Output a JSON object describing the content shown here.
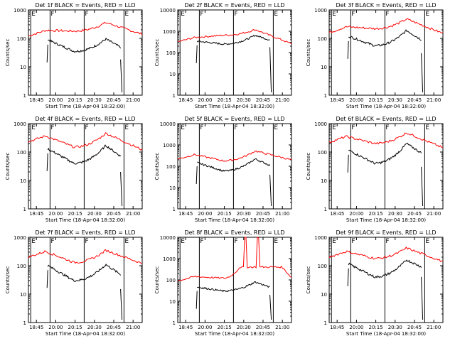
{
  "chart_data": [
    {
      "type": "line",
      "title": "Det 1f BLACK = Events, RED = LLD",
      "ylabel": "Counts/sec",
      "xlabel": "Start Time (18-Apr-04 18:32:00)",
      "yscale": "log",
      "ylim": [
        1,
        1000
      ],
      "ytick_labels": [
        "1",
        "10",
        "100",
        "1000"
      ],
      "xtick_labels": [
        "18:45",
        "20:00",
        "20:15",
        "20:30",
        "20:45",
        "21:00"
      ],
      "marker_labels": [
        "E",
        "F",
        "F",
        "E"
      ],
      "series": [
        {
          "color": "#ff0000",
          "start": 120,
          "peak": 360,
          "valley": 180,
          "end": 140
        },
        {
          "color": "#000000",
          "start": 60,
          "peak": 95,
          "valley": 35,
          "end": 18
        }
      ]
    },
    {
      "type": "line",
      "title": "Det 2f BLACK = Events, RED = LLD",
      "ylabel": "Counts/sec",
      "xlabel": "Start Time (18-Apr-04 18:32:00)",
      "yscale": "log",
      "ylim": [
        1,
        10000
      ],
      "ytick_labels": [
        "1",
        "10",
        "100",
        "1000",
        "10000"
      ],
      "xtick_labels": [
        "18:45",
        "20:00",
        "20:15",
        "20:30",
        "20:45",
        "21:00"
      ],
      "marker_labels": [
        "E",
        "F",
        "F",
        "E"
      ],
      "series": [
        {
          "color": "#ff0000",
          "start": 320,
          "peak": 1200,
          "valley": 650,
          "end": 260
        },
        {
          "color": "#000000",
          "start": 220,
          "peak": 650,
          "valley": 250,
          "end": 180
        }
      ]
    },
    {
      "type": "line",
      "title": "Det 3f BLACK = Events, RED = LLD",
      "ylabel": "Counts/sec",
      "xlabel": "Start Time (18-Apr-04 18:32:00)",
      "yscale": "log",
      "ylim": [
        1,
        1000
      ],
      "ytick_labels": [
        "1",
        "10",
        "100",
        "1000"
      ],
      "xtick_labels": [
        "18:45",
        "20:00",
        "20:15",
        "20:30",
        "20:45",
        "21:00"
      ],
      "marker_labels": [
        "E",
        "F",
        "F",
        "E"
      ],
      "series": [
        {
          "color": "#ff0000",
          "start": 160,
          "peak": 480,
          "valley": 220,
          "end": 150
        },
        {
          "color": "#000000",
          "start": 80,
          "peak": 190,
          "valley": 55,
          "end": 30
        }
      ]
    },
    {
      "type": "line",
      "title": "Det 4f BLACK = Events, RED = LLD",
      "ylabel": "Counts/sec",
      "xlabel": "Start Time (18-Apr-04 18:32:00)",
      "yscale": "log",
      "ylim": [
        1,
        1000
      ],
      "ytick_labels": [
        "1",
        "10",
        "100",
        "1000"
      ],
      "xtick_labels": [
        "18:45",
        "20:00",
        "20:15",
        "20:30",
        "20:45",
        "21:00"
      ],
      "marker_labels": [
        "E",
        "F",
        "F",
        "E"
      ],
      "series": [
        {
          "color": "#ff0000",
          "start": 230,
          "peak": 460,
          "valley": 150,
          "end": 120
        },
        {
          "color": "#000000",
          "start": 90,
          "peak": 170,
          "valley": 40,
          "end": 20
        }
      ]
    },
    {
      "type": "line",
      "title": "Det 5f BLACK = Events, RED = LLD",
      "ylabel": "Counts/sec",
      "xlabel": "Start Time (18-Apr-04 18:32:00)",
      "yscale": "log",
      "ylim": [
        1,
        10000
      ],
      "ytick_labels": [
        "1",
        "10",
        "100",
        "1000",
        "10000"
      ],
      "xtick_labels": [
        "18:45",
        "20:00",
        "20:15",
        "20:30",
        "20:45",
        "21:00"
      ],
      "marker_labels": [
        "E",
        "F",
        "F",
        "E"
      ],
      "series": [
        {
          "color": "#ff0000",
          "start": 220,
          "peak": 520,
          "valley": 180,
          "end": 200
        },
        {
          "color": "#000000",
          "start": 100,
          "peak": 220,
          "valley": 60,
          "end": 40
        }
      ]
    },
    {
      "type": "line",
      "title": "Det 6f BLACK = Events, RED = LLD",
      "ylabel": "Counts/sec",
      "xlabel": "Start Time (18-Apr-04 18:32:00)",
      "yscale": "log",
      "ylim": [
        1,
        1000
      ],
      "ytick_labels": [
        "1",
        "10",
        "100",
        "1000"
      ],
      "xtick_labels": [
        "18:45",
        "20:00",
        "20:15",
        "20:30",
        "20:45",
        "21:00"
      ],
      "marker_labels": [
        "E",
        "F",
        "F",
        "E"
      ],
      "series": [
        {
          "color": "#ff0000",
          "start": 220,
          "peak": 480,
          "valley": 200,
          "end": 140
        },
        {
          "color": "#000000",
          "start": 80,
          "peak": 200,
          "valley": 40,
          "end": 30
        }
      ]
    },
    {
      "type": "line",
      "title": "Det 7f BLACK = Events, RED = LLD",
      "ylabel": "Counts/sec",
      "xlabel": "Start Time (18-Apr-04 18:32:00)",
      "yscale": "log",
      "ylim": [
        1,
        1000
      ],
      "ytick_labels": [
        "1",
        "10",
        "100",
        "1000"
      ],
      "xtick_labels": [
        "18:45",
        "20:00",
        "20:15",
        "20:30",
        "20:45",
        "21:00"
      ],
      "marker_labels": [
        "E",
        "F",
        "F",
        "E"
      ],
      "series": [
        {
          "color": "#ff0000",
          "start": 200,
          "peak": 350,
          "valley": 130,
          "end": 120
        },
        {
          "color": "#000000",
          "start": 70,
          "peak": 110,
          "valley": 30,
          "end": 15
        }
      ]
    },
    {
      "type": "line",
      "title": "Det 8f BLACK = Events, RED = LLD",
      "ylabel": "Counts/sec",
      "xlabel": "Start Time (18-Apr-04 18:32:00)",
      "yscale": "log",
      "ylim": [
        1,
        10000
      ],
      "ytick_labels": [
        "1",
        "10",
        "100",
        "1000",
        "10000"
      ],
      "xtick_labels": [
        "18:45",
        "20:00",
        "20:15",
        "20:30",
        "20:45",
        "21:00"
      ],
      "marker_labels": [
        "E",
        "F",
        "F",
        "E"
      ],
      "series": [
        {
          "color": "#ff0000",
          "start": 90,
          "peak": 10000,
          "valley": 120,
          "end": 130
        },
        {
          "color": "#000000",
          "start": 30,
          "peak": 80,
          "valley": 30,
          "end": 20
        }
      ]
    },
    {
      "type": "line",
      "title": "Det 9f BLACK = Events, RED = LLD",
      "ylabel": "Counts/sec",
      "xlabel": "Start Time (18-Apr-04 18:32:00)",
      "yscale": "log",
      "ylim": [
        1,
        1000
      ],
      "ytick_labels": [
        "1",
        "10",
        "100",
        "1000"
      ],
      "xtick_labels": [
        "18:45",
        "20:00",
        "20:15",
        "20:30",
        "20:45",
        "21:00"
      ],
      "marker_labels": [
        "E",
        "F",
        "F",
        "E"
      ],
      "series": [
        {
          "color": "#ff0000",
          "start": 200,
          "peak": 420,
          "valley": 180,
          "end": 140
        },
        {
          "color": "#000000",
          "start": 80,
          "peak": 160,
          "valley": 40,
          "end": 40
        }
      ]
    }
  ]
}
